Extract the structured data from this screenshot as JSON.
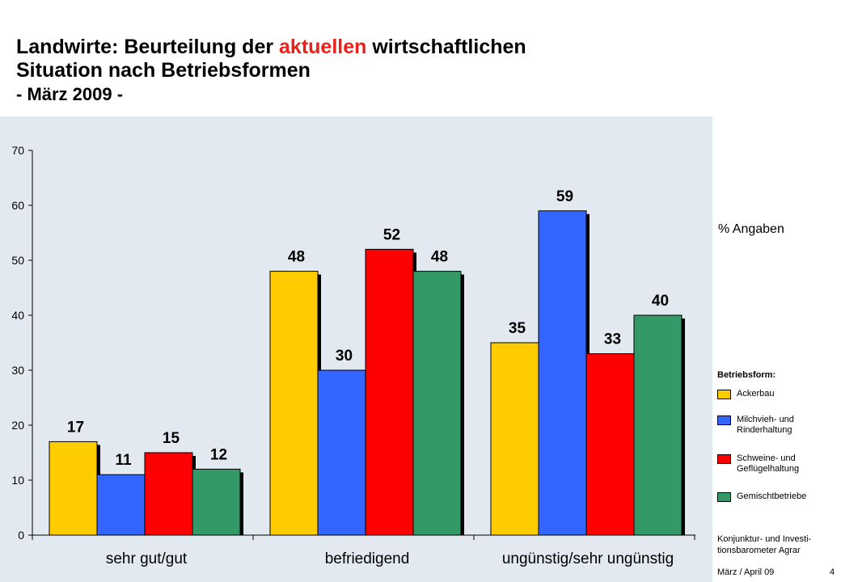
{
  "header": {
    "title_pre": "Landwirte: Beurteilung der ",
    "title_accent": "aktuellen",
    "title_post": " wirtschaftlichen",
    "title_line2": "Situation nach Betriebsformen",
    "subtitle": "- März 2009 -"
  },
  "side": {
    "unit": "% Angaben",
    "legend_title": "Betriebsform:",
    "source": "Konjunktur- und Investi-\ntionsbarometer Agrar",
    "footer_date": "März / April 09",
    "page_number": "4"
  },
  "colors": {
    "plot_bg": "#e3e9f0",
    "ackerbau": "#ffcc00",
    "milchvieh": "#3366ff",
    "schweine": "#ff0000",
    "gemischt": "#339966"
  },
  "chart_data": {
    "type": "bar",
    "categories": [
      "sehr gut/gut",
      "befriedigend",
      "ungünstig/sehr ungünstig"
    ],
    "series": [
      {
        "name": "Ackerbau",
        "values": [
          17,
          48,
          35
        ],
        "color": "#ffcc00"
      },
      {
        "name": "Milchvieh- und\nRinderhaltung",
        "values": [
          11,
          30,
          59
        ],
        "color": "#3366ff"
      },
      {
        "name": "Schweine- und\nGeflügelhaltung",
        "values": [
          15,
          52,
          33
        ],
        "color": "#ff0000"
      },
      {
        "name": "Gemischtbetriebe",
        "values": [
          12,
          48,
          40
        ],
        "color": "#339966"
      }
    ],
    "ylim": [
      0,
      70
    ],
    "yticks": [
      0,
      10,
      20,
      30,
      40,
      50,
      60,
      70
    ],
    "data_labels": true,
    "grid": false,
    "legend_position": "right"
  }
}
